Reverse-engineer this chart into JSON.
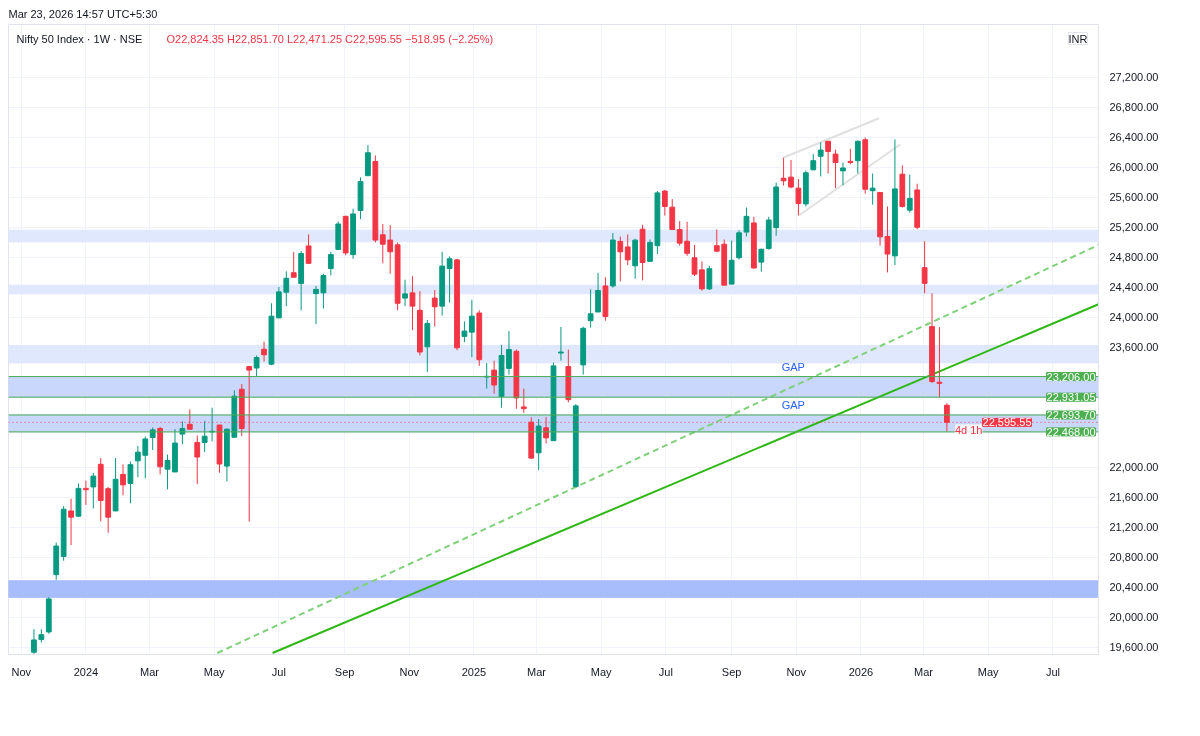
{
  "chart_data": {
    "type": "candlestick",
    "title": "Nifty 50 Index · 1W · NSE",
    "subtitle": "O22,824.35  H22,851.70  L22,471.25  C22,595.55  −518.95 (−2.25%)",
    "ylabel": "INR",
    "annotations": [
      "Mar 23, 2026 14:57 UTC+5:30",
      {
        "text": "4d 1h",
        "x": "2026-03-23",
        "y": 22595.55
      }
    ],
    "x": [
      "2023-11-13",
      "2023-11-20",
      "2023-11-27",
      "2023-12-04",
      "2023-12-11",
      "2023-12-18",
      "2023-12-25",
      "2024-01-01",
      "2024-01-08",
      "2024-01-15",
      "2024-01-22",
      "2024-01-29",
      "2024-02-05",
      "2024-02-12",
      "2024-02-19",
      "2024-02-26",
      "2024-03-04",
      "2024-03-11",
      "2024-03-18",
      "2024-03-25",
      "2024-04-01",
      "2024-04-08",
      "2024-04-15",
      "2024-04-22",
      "2024-04-29",
      "2024-05-06",
      "2024-05-13",
      "2024-05-20",
      "2024-05-27",
      "2024-06-03",
      "2024-06-10",
      "2024-06-17",
      "2024-06-24",
      "2024-07-01",
      "2024-07-08",
      "2024-07-15",
      "2024-07-22",
      "2024-07-29",
      "2024-08-05",
      "2024-08-12",
      "2024-08-19",
      "2024-08-26",
      "2024-09-02",
      "2024-09-09",
      "2024-09-16",
      "2024-09-23",
      "2024-09-30",
      "2024-10-07",
      "2024-10-14",
      "2024-10-21",
      "2024-10-28",
      "2024-11-04",
      "2024-11-11",
      "2024-11-18",
      "2024-11-25",
      "2024-12-02",
      "2024-12-09",
      "2024-12-16",
      "2024-12-23",
      "2024-12-30",
      "2025-01-06",
      "2025-01-13",
      "2025-01-20",
      "2025-01-27",
      "2025-02-03",
      "2025-02-10",
      "2025-02-17",
      "2025-02-24",
      "2025-03-03",
      "2025-03-10",
      "2025-03-17",
      "2025-03-24",
      "2025-03-31",
      "2025-04-07",
      "2025-04-14",
      "2025-04-21",
      "2025-04-28",
      "2025-05-05",
      "2025-05-12",
      "2025-05-19",
      "2025-05-26",
      "2025-06-02",
      "2025-06-09",
      "2025-06-16",
      "2025-06-23",
      "2025-06-30",
      "2025-07-07",
      "2025-07-14",
      "2025-07-21",
      "2025-07-28",
      "2025-08-04",
      "2025-08-11",
      "2025-08-18",
      "2025-08-25",
      "2025-09-01",
      "2025-09-08",
      "2025-09-15",
      "2025-09-22",
      "2025-09-29",
      "2025-10-06",
      "2025-10-13",
      "2025-10-20",
      "2025-10-27",
      "2025-11-03",
      "2025-11-10",
      "2025-11-17",
      "2025-11-24",
      "2025-12-01",
      "2025-12-08",
      "2025-12-15",
      "2025-12-22",
      "2025-12-29",
      "2026-01-05",
      "2026-01-12",
      "2026-01-19",
      "2026-01-26",
      "2026-02-02",
      "2026-02-09",
      "2026-02-16",
      "2026-02-23",
      "2026-03-02",
      "2026-03-09",
      "2026-03-16",
      "2026-03-23"
    ],
    "ohlc": [
      [
        19530,
        19838,
        19510,
        19694
      ],
      [
        19699,
        19838,
        19661,
        19764
      ],
      [
        19801,
        20264,
        19777,
        20241
      ],
      [
        20565,
        20992,
        20496,
        20946
      ],
      [
        20807,
        21479,
        20751,
        21437
      ],
      [
        21414,
        21577,
        20960,
        21331
      ],
      [
        21345,
        21781,
        21331,
        21715
      ],
      [
        21715,
        21817,
        21493,
        21697
      ],
      [
        21734,
        21920,
        21447,
        21878
      ],
      [
        22036,
        22119,
        21275,
        21553
      ],
      [
        21711,
        21734,
        21122,
        21331
      ],
      [
        21414,
        22119,
        21414,
        21836
      ],
      [
        21901,
        22036,
        21623,
        21762
      ],
      [
        21781,
        22073,
        21516,
        22031
      ],
      [
        22082,
        22281,
        21864,
        22198
      ],
      [
        22156,
        22407,
        21850,
        22374
      ],
      [
        22393,
        22527,
        22226,
        22495
      ],
      [
        22513,
        22536,
        21901,
        22003
      ],
      [
        21971,
        22166,
        21702,
        22087
      ],
      [
        21934,
        22504,
        21934,
        22319
      ],
      [
        22439,
        22606,
        22305,
        22513
      ],
      [
        22569,
        22768,
        22504,
        22504
      ],
      [
        22328,
        22420,
        21771,
        22133
      ],
      [
        22328,
        22615,
        22198,
        22411
      ],
      [
        22467,
        22791,
        22342,
        22476
      ],
      [
        22560,
        22560,
        21924,
        22040
      ],
      [
        22012,
        22513,
        21808,
        22504
      ],
      [
        22397,
        23023,
        22397,
        22944
      ],
      [
        23037,
        23107,
        22411,
        22513
      ],
      [
        23339,
        23339,
        21271,
        23292
      ],
      [
        23320,
        23487,
        23209,
        23459
      ],
      [
        23570,
        23672,
        23404,
        23496
      ],
      [
        23371,
        24183,
        23357,
        24011
      ],
      [
        23988,
        24400,
        23988,
        24335
      ],
      [
        24331,
        24609,
        24145,
        24516
      ],
      [
        24590,
        24869,
        24530,
        24530
      ],
      [
        24447,
        24878,
        24090,
        24846
      ],
      [
        24948,
        25101,
        24706,
        24716
      ],
      [
        24312,
        24414,
        23904,
        24368
      ],
      [
        24322,
        24577,
        24113,
        24553
      ],
      [
        24646,
        24869,
        24553,
        24832
      ],
      [
        24901,
        25272,
        24901,
        25240
      ],
      [
        25342,
        25351,
        24822,
        24855
      ],
      [
        24832,
        25444,
        24776,
        25374
      ],
      [
        25421,
        25861,
        25305,
        25805
      ],
      [
        25884,
        26292,
        25884,
        26190
      ],
      [
        26074,
        26153,
        24994,
        25026
      ],
      [
        25096,
        25240,
        24716,
        24971
      ],
      [
        25026,
        25226,
        24577,
        24869
      ],
      [
        24962,
        24994,
        24090,
        24183
      ],
      [
        24252,
        24498,
        24145,
        24308
      ],
      [
        24322,
        24544,
        23825,
        24145
      ],
      [
        24090,
        24345,
        23487,
        23533
      ],
      [
        23603,
        23960,
        23269,
        23914
      ],
      [
        24252,
        24359,
        23872,
        24136
      ],
      [
        24145,
        24869,
        24020,
        24679
      ],
      [
        24646,
        24808,
        24192,
        24776
      ],
      [
        24762,
        24776,
        23557,
        23589
      ],
      [
        23742,
        23941,
        23663,
        23812
      ],
      [
        23798,
        24229,
        23464,
        24011
      ],
      [
        24053,
        24090,
        23348,
        23431
      ],
      [
        23200,
        23385,
        23046,
        23209
      ],
      [
        23292,
        23417,
        22977,
        23093
      ],
      [
        22940,
        23626,
        22791,
        23487
      ],
      [
        23315,
        23812,
        23232,
        23566
      ],
      [
        23543,
        23566,
        22777,
        22921
      ],
      [
        22801,
        23046,
        22722,
        22777
      ],
      [
        22597,
        22662,
        22105,
        22119
      ],
      [
        22189,
        22639,
        21957,
        22546
      ],
      [
        22523,
        22666,
        22314,
        22388
      ],
      [
        22351,
        23394,
        22351,
        23348
      ],
      [
        23520,
        23867,
        23418,
        23533
      ],
      [
        23339,
        23566,
        22861,
        22898
      ],
      [
        21739,
        22838,
        21739,
        22815
      ],
      [
        23362,
        23872,
        23232,
        23849
      ],
      [
        23951,
        24368,
        23858,
        24043
      ],
      [
        24067,
        24590,
        24067,
        24354
      ],
      [
        24414,
        24530,
        23951,
        24006
      ],
      [
        24414,
        25119,
        24391,
        25026
      ],
      [
        25008,
        25073,
        24475,
        24869
      ],
      [
        24934,
        25101,
        24693,
        24762
      ],
      [
        24683,
        25044,
        24512,
        25025
      ],
      [
        25171,
        25230,
        24488,
        24727
      ],
      [
        24742,
        25034,
        24742,
        24995
      ],
      [
        24951,
        25679,
        24839,
        25655
      ],
      [
        25679,
        25694,
        25352,
        25474
      ],
      [
        25464,
        25572,
        25166,
        25166
      ],
      [
        25166,
        25279,
        24951,
        24985
      ],
      [
        25010,
        25269,
        24815,
        24849
      ],
      [
        24790,
        24961,
        24546,
        24571
      ],
      [
        24629,
        24741,
        24351,
        24375
      ],
      [
        24375,
        24683,
        24361,
        24644
      ],
      [
        24951,
        25166,
        24864,
        24878
      ],
      [
        24971,
        25034,
        24424,
        24424
      ],
      [
        24439,
        25020,
        24439,
        24756
      ],
      [
        24790,
        25157,
        24766,
        25122
      ],
      [
        25132,
        25459,
        25074,
        25342
      ],
      [
        25254,
        25337,
        24644,
        24654
      ],
      [
        24732,
        24912,
        24605,
        24903
      ],
      [
        24912,
        25337,
        24898,
        25293
      ],
      [
        25191,
        25791,
        25083,
        25733
      ],
      [
        25850,
        26123,
        25752,
        25816
      ],
      [
        25865,
        26094,
        25718,
        25733
      ],
      [
        25718,
        25840,
        25352,
        25513
      ],
      [
        25508,
        25952,
        25474,
        25923
      ],
      [
        25962,
        26172,
        25962,
        26084
      ],
      [
        26143,
        26328,
        25874,
        26226
      ],
      [
        26343,
        26343,
        25913,
        26206
      ],
      [
        26172,
        26231,
        25718,
        26060
      ],
      [
        25948,
        26060,
        25757,
        25987
      ],
      [
        26075,
        26241,
        26036,
        26060
      ],
      [
        26084,
        26353,
        25913,
        26343
      ],
      [
        26363,
        26392,
        25645,
        25703
      ],
      [
        25684,
        25913,
        25498,
        25718
      ],
      [
        25660,
        25660,
        24951,
        25069
      ],
      [
        25074,
        25474,
        24595,
        24839
      ],
      [
        24815,
        26368,
        24693,
        25708
      ],
      [
        25904,
        26021,
        25459,
        25474
      ],
      [
        25425,
        25899,
        25391,
        25581
      ],
      [
        25694,
        25777,
        25171,
        25196
      ],
      [
        24658,
        25010,
        24317,
        24449
      ],
      [
        23872,
        24317,
        23120,
        23140
      ],
      [
        23130,
        23865,
        22931.05,
        23115
      ],
      [
        22824.35,
        22851.7,
        22471.25,
        22595.55
      ]
    ],
    "colors": [
      "#089981",
      "#089981",
      "#089981",
      "#089981",
      "#089981",
      "#f23645",
      "#089981",
      "#f23645",
      "#089981",
      "#f23645",
      "#f23645",
      "#089981",
      "#f23645",
      "#089981",
      "#089981",
      "#089981",
      "#089981",
      "#f23645",
      "#089981",
      "#089981",
      "#089981",
      "#f23645",
      "#f23645",
      "#089981",
      "#089981",
      "#f23645",
      "#089981",
      "#089981",
      "#f23645",
      "#f23645",
      "#089981",
      "#f23645",
      "#089981",
      "#089981",
      "#089981",
      "#f23645",
      "#089981",
      "#f23645",
      "#089981",
      "#089981",
      "#089981",
      "#089981",
      "#f23645",
      "#089981",
      "#089981",
      "#089981",
      "#f23645",
      "#f23645",
      "#f23645",
      "#f23645",
      "#089981",
      "#f23645",
      "#f23645",
      "#089981",
      "#f23645",
      "#089981",
      "#089981",
      "#f23645",
      "#089981",
      "#089981",
      "#f23645",
      "#089981",
      "#f23645",
      "#089981",
      "#089981",
      "#f23645",
      "#f23645",
      "#f23645",
      "#089981",
      "#f23645",
      "#089981",
      "#089981",
      "#f23645",
      "#089981",
      "#089981",
      "#089981",
      "#089981",
      "#f23645",
      "#089981",
      "#f23645",
      "#f23645",
      "#089981",
      "#f23645",
      "#089981",
      "#089981",
      "#f23645",
      "#f23645",
      "#f23645",
      "#f23645",
      "#f23645",
      "#f23645",
      "#089981",
      "#f23645",
      "#f23645",
      "#089981",
      "#089981",
      "#089981",
      "#f23645",
      "#089981",
      "#089981",
      "#089981",
      "#f23645",
      "#f23645",
      "#f23645",
      "#089981",
      "#089981",
      "#089981",
      "#f23645",
      "#f23645",
      "#089981",
      "#f23645",
      "#089981",
      "#f23645",
      "#089981",
      "#f23645",
      "#f23645",
      "#089981",
      "#f23645",
      "#089981",
      "#f23645",
      "#f23645",
      "#f23645",
      "#f23645",
      "#f23645"
    ],
    "series": [
      {
        "type": "line",
        "x": [
          "2024-06-25",
          "2026-08-13"
        ],
        "values": [
          19520,
          24170
        ],
        "color": "#2db814",
        "line_style": "solid"
      },
      {
        "type": "line",
        "x": [
          "2024-05-04",
          "2026-08-13"
        ],
        "values": [
          19520,
          24960
        ],
        "color": "#7fd17a",
        "line_style": "dashed"
      },
      {
        "type": "line",
        "x": [
          "2025-10-19",
          "2026-01-18"
        ],
        "values": [
          26120,
          26650
        ],
        "color": "#e0e0e0",
        "line_style": "solid"
      },
      {
        "type": "line",
        "x": [
          "2025-11-04",
          "2026-02-07"
        ],
        "values": [
          25360,
          26300
        ],
        "color": "#e0e0e0",
        "line_style": "solid"
      }
    ],
    "bands": [
      {
        "axis": "y",
        "from": 20262,
        "to": 20483,
        "color": "#9fb6fb"
      },
      {
        "axis": "y",
        "from": 22931.05,
        "to": 23206,
        "label": "GAP",
        "color": "#c3d3fd"
      },
      {
        "axis": "y",
        "from": 22468,
        "to": 22693.7,
        "label": "GAP",
        "color": "#c3d3fd"
      },
      {
        "axis": "y",
        "from": 25003,
        "to": 25158,
        "color": "#dde6fd"
      },
      {
        "axis": "y",
        "from": 24309,
        "to": 24425,
        "color": "#dde6fd"
      },
      {
        "axis": "y",
        "from": 23388,
        "to": 23621,
        "color": "#dde6fd"
      }
    ],
    "ref_lines": [
      {
        "axis": "y",
        "value": 23206,
        "label": "23,206.00",
        "color": "#4caf50",
        "line_style": "solid"
      },
      {
        "axis": "y",
        "value": 22931.05,
        "label": "22,931.05",
        "color": "#4caf50",
        "line_style": "solid"
      },
      {
        "axis": "y",
        "value": 22693.7,
        "label": "22,693.70",
        "color": "#4caf50",
        "line_style": "solid"
      },
      {
        "axis": "y",
        "value": 22595.55,
        "label": "22,595.55",
        "color": "#f23645",
        "line_style": "dotted"
      },
      {
        "axis": "y",
        "value": 22468,
        "label": "22,468.00",
        "color": "#4caf50",
        "line_style": "solid"
      }
    ],
    "xlim": [
      "2023-10-20",
      "2026-08-13"
    ],
    "xticks": [
      {
        "value": "2023-11-01",
        "label": "Nov"
      },
      {
        "value": "2024-01-01",
        "label": "2024"
      },
      {
        "value": "2024-03-01",
        "label": "Mar"
      },
      {
        "value": "2024-05-01",
        "label": "May"
      },
      {
        "value": "2024-07-01",
        "label": "Jul"
      },
      {
        "value": "2024-09-01",
        "label": "Sep"
      },
      {
        "value": "2024-11-01",
        "label": "Nov"
      },
      {
        "value": "2025-01-01",
        "label": "2025"
      },
      {
        "value": "2025-03-01",
        "label": "Mar"
      },
      {
        "value": "2025-05-01",
        "label": "May"
      },
      {
        "value": "2025-07-01",
        "label": "Jul"
      },
      {
        "value": "2025-09-01",
        "label": "Sep"
      },
      {
        "value": "2025-11-01",
        "label": "Nov"
      },
      {
        "value": "2026-01-01",
        "label": "2026"
      },
      {
        "value": "2026-03-01",
        "label": "Mar"
      },
      {
        "value": "2026-05-01",
        "label": "May"
      },
      {
        "value": "2026-07-01",
        "label": "Jul"
      }
    ],
    "ylim": [
      19500,
      27900
    ],
    "yticks": [
      {
        "value": 19600,
        "label": "19,600.00"
      },
      {
        "value": 20000,
        "label": "20,000.00"
      },
      {
        "value": 20400,
        "label": "20,400.00"
      },
      {
        "value": 20800,
        "label": "20,800.00"
      },
      {
        "value": 21200,
        "label": "21,200.00"
      },
      {
        "value": 21600,
        "label": "21,600.00"
      },
      {
        "value": 22000,
        "label": "22,000.00"
      },
      {
        "value": 23600,
        "label": "23,600.00"
      },
      {
        "value": 24000,
        "label": "24,000.00"
      },
      {
        "value": 24400,
        "label": "24,400.00"
      },
      {
        "value": 24800,
        "label": "24,800.00"
      },
      {
        "value": 25200,
        "label": "25,200.00"
      },
      {
        "value": 25600,
        "label": "25,600.00"
      },
      {
        "value": 26000,
        "label": "26,000.00"
      },
      {
        "value": 26400,
        "label": "26,400.00"
      },
      {
        "value": 26800,
        "label": "26,800.00"
      },
      {
        "value": 27200,
        "label": "27,200.00"
      }
    ],
    "grid": true
  }
}
